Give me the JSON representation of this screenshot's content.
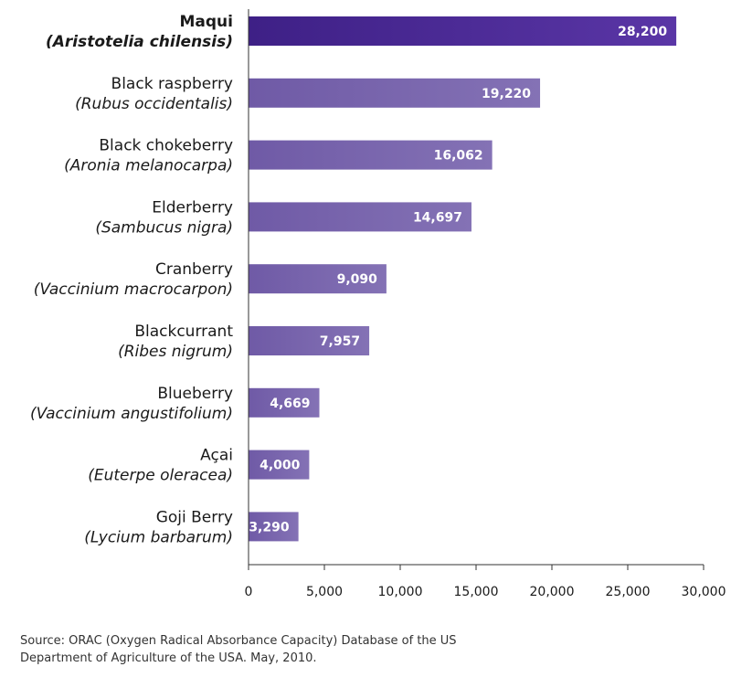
{
  "chart_data": {
    "type": "bar",
    "orientation": "horizontal",
    "categories": [
      {
        "name": "Maqui",
        "scientific": "Aristotelia chilensis",
        "highlight": true
      },
      {
        "name": "Black raspberry",
        "scientific": "Rubus occidentalis",
        "highlight": false
      },
      {
        "name": "Black chokeberry",
        "scientific": "Aronia melanocarpa",
        "highlight": false
      },
      {
        "name": "Elderberry",
        "scientific": "Sambucus nigra",
        "highlight": false
      },
      {
        "name": "Cranberry",
        "scientific": "Vaccinium macrocarpon",
        "highlight": false
      },
      {
        "name": "Blackcurrant",
        "scientific": "Ribes nigrum",
        "highlight": false
      },
      {
        "name": "Blueberry",
        "scientific": "Vaccinium angustifolium",
        "highlight": false
      },
      {
        "name": "Açai",
        "scientific": "Euterpe oleracea",
        "highlight": false
      },
      {
        "name": "Goji Berry",
        "scientific": "Lycium barbarum",
        "highlight": false
      }
    ],
    "values": [
      28200,
      19220,
      16062,
      14697,
      9090,
      7957,
      4669,
      4000,
      3290
    ],
    "value_labels": [
      "28,200",
      "19,220",
      "16,062",
      "14,697",
      "9,090",
      "7,957",
      "4,669",
      "4,000",
      "3,290"
    ],
    "xlim": [
      0,
      30000
    ],
    "xticks": [
      0,
      5000,
      10000,
      15000,
      20000,
      25000,
      30000
    ],
    "xtick_labels": [
      "0",
      "5,000",
      "10,000",
      "15,000",
      "20,000",
      "25,000",
      "30,000"
    ],
    "colors": {
      "highlight_bar": "#4a2a8f",
      "bar": "#7a66ad",
      "axis": "#333333"
    }
  },
  "source": {
    "line1": "Source: ORAC (Oxygen Radical Absorbance Capacity) Database of the US",
    "line2": "Department of Agriculture of the USA. May, 2010."
  }
}
